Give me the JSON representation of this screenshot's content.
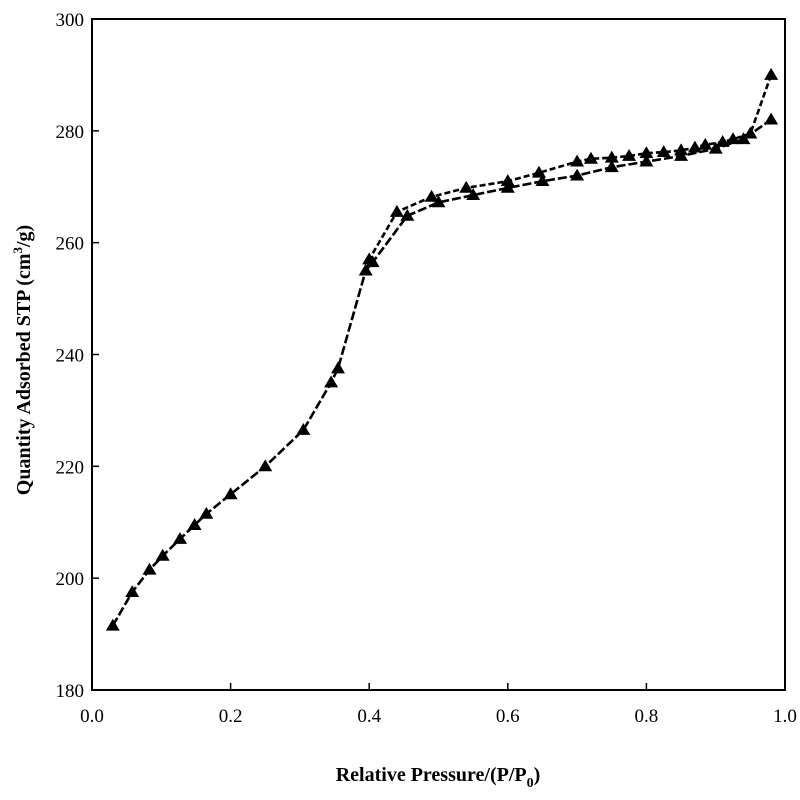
{
  "chart_data": {
    "type": "line",
    "xlabel_parts": [
      "Relative Pressure/(P/P",
      "0",
      ")"
    ],
    "ylabel_parts": [
      "Quantity Adsorbed STP (cm",
      "3",
      "/g)"
    ],
    "xlim": [
      0.0,
      1.0
    ],
    "ylim": [
      180,
      300
    ],
    "x_ticks": [
      0.0,
      0.2,
      0.4,
      0.6,
      0.8,
      1.0
    ],
    "x_tick_labels": [
      "0.0",
      "0.2",
      "0.4",
      "0.6",
      "0.8",
      "1.0"
    ],
    "y_ticks": [
      180,
      200,
      220,
      240,
      260,
      280,
      300
    ],
    "y_tick_labels": [
      "180",
      "200",
      "220",
      "240",
      "260",
      "280",
      "300"
    ],
    "marker": "triangle",
    "series": [
      {
        "x": [
          0.03,
          0.058,
          0.083,
          0.102,
          0.127,
          0.148,
          0.165,
          0.2,
          0.25,
          0.305,
          0.345,
          0.355,
          0.395,
          0.405,
          0.455,
          0.5,
          0.55,
          0.6,
          0.65,
          0.7,
          0.75,
          0.8,
          0.85,
          0.9,
          0.94,
          0.98
        ],
        "y": [
          191.5,
          197.5,
          201.5,
          204.0,
          207.0,
          209.5,
          211.5,
          215.0,
          220.0,
          226.5,
          235.0,
          237.5,
          255.0,
          256.5,
          264.8,
          267.2,
          268.5,
          269.8,
          271.0,
          272.0,
          273.5,
          274.5,
          275.5,
          276.8,
          278.5,
          282.0
        ]
      },
      {
        "x": [
          0.98,
          0.95,
          0.925,
          0.91,
          0.885,
          0.87,
          0.85,
          0.825,
          0.8,
          0.775,
          0.75,
          0.72,
          0.7,
          0.645,
          0.6,
          0.54,
          0.49,
          0.44,
          0.4
        ],
        "y": [
          290.0,
          279.5,
          278.5,
          278.0,
          277.5,
          277.0,
          276.5,
          276.2,
          276.0,
          275.5,
          275.2,
          275.0,
          274.5,
          272.5,
          271.0,
          269.8,
          268.2,
          265.5,
          257.0
        ]
      }
    ]
  }
}
